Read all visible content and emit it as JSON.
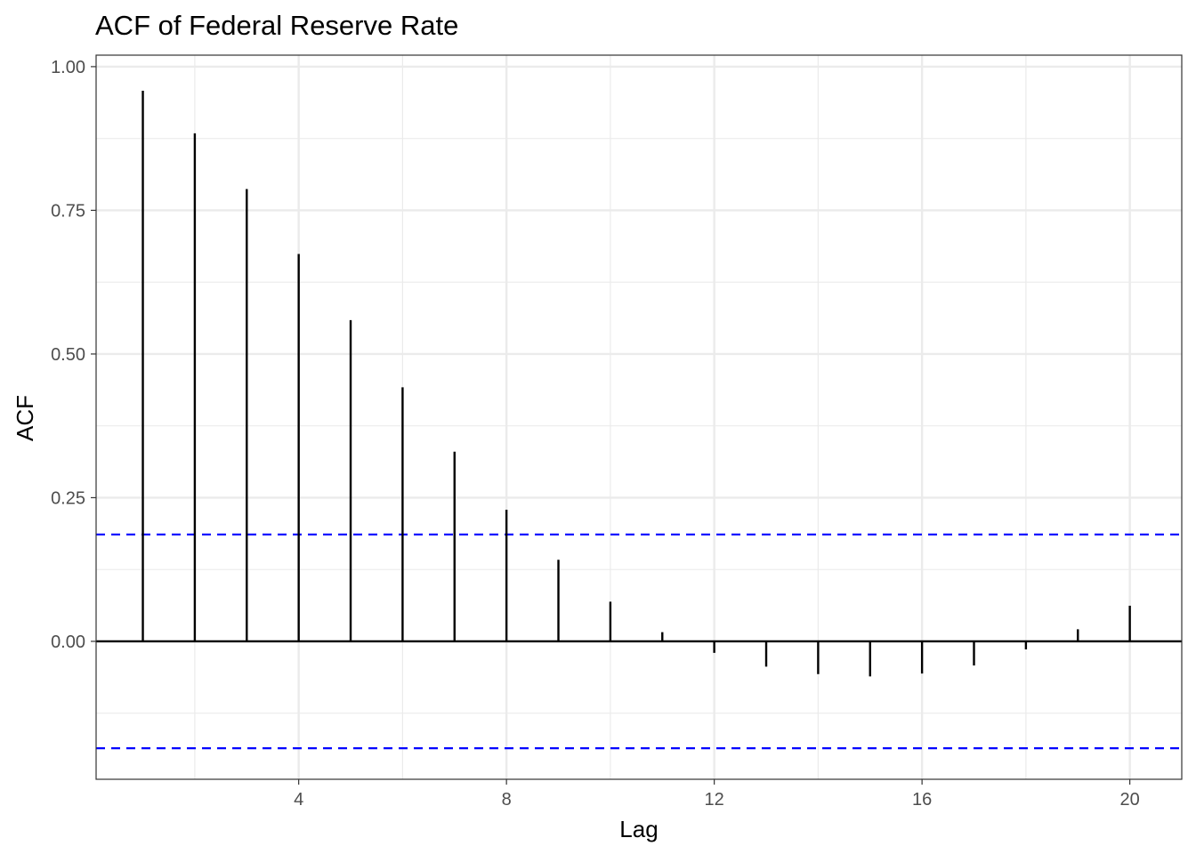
{
  "chart_data": {
    "type": "bar",
    "title": "ACF of Federal Reserve Rate",
    "xlabel": "Lag",
    "ylabel": "ACF",
    "x": [
      1,
      2,
      3,
      4,
      5,
      6,
      7,
      8,
      9,
      10,
      11,
      12,
      13,
      14,
      15,
      16,
      17,
      18,
      19,
      20
    ],
    "values": [
      0.958,
      0.884,
      0.787,
      0.674,
      0.559,
      0.442,
      0.33,
      0.229,
      0.142,
      0.069,
      0.016,
      -0.02,
      -0.044,
      -0.057,
      -0.061,
      -0.056,
      -0.042,
      -0.014,
      0.021,
      0.062
    ],
    "confidence_limits": [
      0.186,
      -0.186
    ],
    "xlim": [
      0.1,
      21.0
    ],
    "ylim": [
      -0.24,
      1.02
    ],
    "x_ticks": [
      4,
      8,
      12,
      16,
      20
    ],
    "y_ticks": [
      0.0,
      0.25,
      0.5,
      0.75,
      1.0
    ],
    "y_tick_labels": [
      "0.00",
      "0.25",
      "0.50",
      "0.75",
      "1.00"
    ],
    "grid": true,
    "colors": {
      "bars": "#000000",
      "confidence": "#0000ff",
      "grid": "#ebebeb",
      "panel_border": "#333333"
    }
  }
}
